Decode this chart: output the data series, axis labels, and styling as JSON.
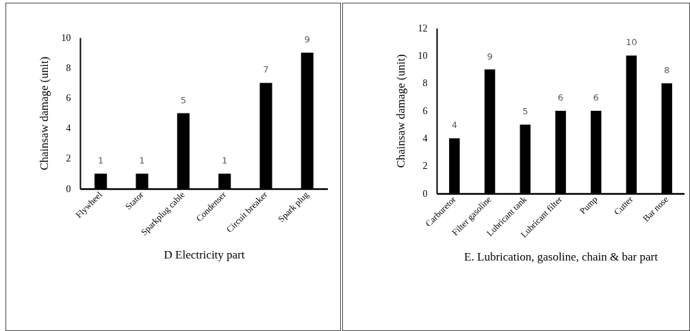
{
  "chart_data": [
    {
      "type": "bar",
      "xlabel": "D Electricity part",
      "ylabel": "Chainsaw damage (unit)",
      "categories": [
        "Flywheel",
        "Stator",
        "Sparkplug cable",
        "Condenser",
        "Circuit breaker",
        "Spark plug"
      ],
      "values": [
        1,
        1,
        5,
        1,
        7,
        9
      ],
      "color": "#000000",
      "ylim": [
        0,
        10
      ],
      "yticks": [
        0,
        2,
        4,
        6,
        8,
        10
      ],
      "data_labels": true
    },
    {
      "type": "bar",
      "xlabel": "E. Lubrication, gasoline, chain & bar part",
      "ylabel": "Chainsaw damage (unit)",
      "categories": [
        "Carburetor",
        "Filter gasoline",
        "Lubricant tank",
        "Lubricant filter",
        "Pump",
        "Cutter",
        "Bar nose"
      ],
      "values": [
        4,
        9,
        5,
        6,
        6,
        10,
        8
      ],
      "color": "#000000",
      "ylim": [
        0,
        12
      ],
      "yticks": [
        0,
        2,
        4,
        6,
        8,
        10,
        12
      ],
      "data_labels": true
    }
  ]
}
